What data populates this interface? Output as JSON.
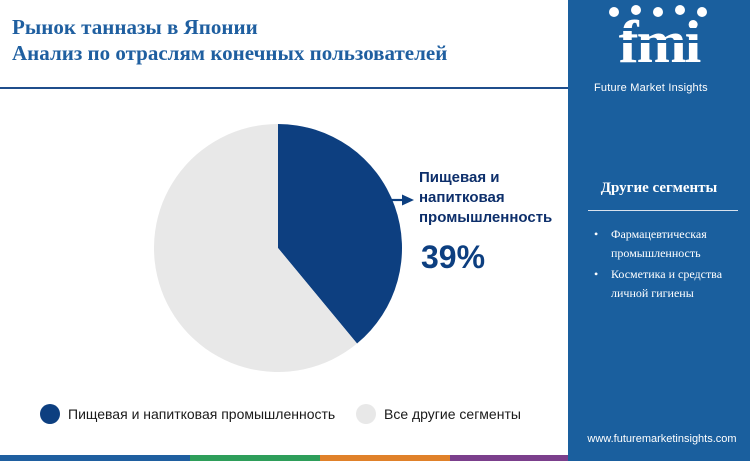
{
  "header": {
    "title_line1": "Рынок танназы в Японии",
    "title_line2": "Анализ по отраслям конечных пользователей"
  },
  "chart_data": {
    "type": "pie",
    "slices": [
      {
        "label": "Пищевая и напитковая промышленность",
        "value": 39,
        "color": "#0d3f80"
      },
      {
        "label": "Все другие сегменты",
        "value": 61,
        "color": "#e8e8e8"
      }
    ],
    "callout": {
      "label_lines": [
        "Пищевая и",
        "напитковая",
        "промышленность"
      ],
      "value": "39%"
    },
    "legend": {
      "position": "bottom"
    }
  },
  "sidebar": {
    "brand_logo": "fmi",
    "brand_name": "Future Market Insights",
    "segments_title": "Другие сегменты",
    "segments": [
      "Фармацевтическая промышленность",
      "Косметика и средства личной гигиены"
    ],
    "website": "www.futuremarketinsights.com"
  },
  "colors": {
    "title": "#1f5fa0",
    "sidebar_bg": "#1a5f9e",
    "accent_dark": "#0d3f80",
    "bottom_stripe": [
      "#1f5fa0",
      "#2e9e5a",
      "#e0812a",
      "#7b3f8c"
    ]
  }
}
